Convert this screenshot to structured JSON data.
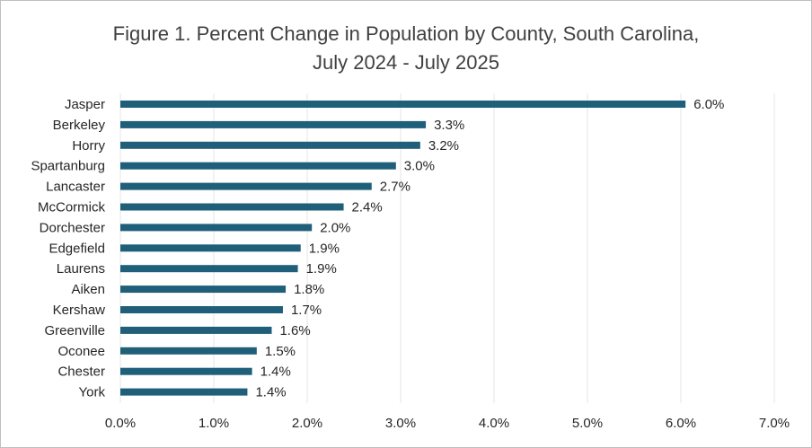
{
  "chart_data": {
    "type": "bar",
    "orientation": "horizontal",
    "title": "Figure 1. Percent Change in Population by County, South Carolina,",
    "subtitle": "July 2024 - July 2025",
    "categories": [
      "Jasper",
      "Berkeley",
      "Horry",
      "Spartanburg",
      "Lancaster",
      "McCormick",
      "Dorchester",
      "Edgefield",
      "Laurens",
      "Aiken",
      "Kershaw",
      "Greenville",
      "Oconee",
      "Chester",
      "York"
    ],
    "values": [
      6.05,
      3.27,
      3.21,
      2.95,
      2.69,
      2.39,
      2.05,
      1.93,
      1.9,
      1.77,
      1.74,
      1.62,
      1.46,
      1.41,
      1.36
    ],
    "data_labels": [
      "6.0%",
      "3.3%",
      "3.2%",
      "3.0%",
      "2.7%",
      "2.4%",
      "2.0%",
      "1.9%",
      "1.9%",
      "1.8%",
      "1.7%",
      "1.6%",
      "1.5%",
      "1.4%",
      "1.4%"
    ],
    "x_ticks": [
      0,
      1,
      2,
      3,
      4,
      5,
      6,
      7
    ],
    "x_tick_labels": [
      "0.0%",
      "1.0%",
      "2.0%",
      "3.0%",
      "4.0%",
      "5.0%",
      "6.0%",
      "7.0%"
    ],
    "xlim": [
      0,
      7
    ],
    "grid": true,
    "bar_color": "#1f5f7a"
  }
}
